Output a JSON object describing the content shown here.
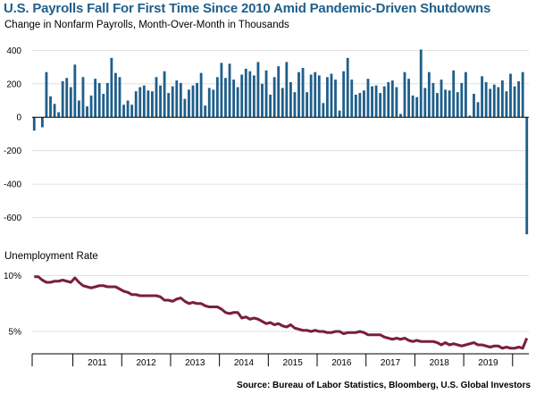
{
  "title": "U.S. Payrolls Fall For First Time Since 2010 Amid Pandemic-Driven Shutdowns",
  "subtitle": "Change in Nonfarm Payrolls, Month-Over-Month in Thousands",
  "source": "Source: Bureau of Labor Statistics, Bloomberg, U.S. Global Investors",
  "colors": {
    "bars": "#1f5f8b",
    "line": "#7a1f3d",
    "title": "#1f5f8b"
  },
  "chart_data": [
    {
      "type": "bar",
      "title": "Change in Nonfarm Payrolls, Month-Over-Month in Thousands",
      "xlabel": "",
      "ylabel": "",
      "ylim": [
        -720,
        450
      ],
      "yticks": [
        400,
        200,
        0,
        -200,
        -400,
        -600
      ],
      "x_ticks": [
        "2011",
        "2012",
        "2013",
        "2014",
        "2015",
        "2016",
        "2017",
        "2018",
        "2019"
      ],
      "x_range": [
        "2010-03",
        "2020-03"
      ],
      "series": [
        {
          "values": [
            -80,
            0,
            -60,
            270,
            125,
            80,
            30,
            215,
            235,
            180,
            315,
            100,
            240,
            65,
            130,
            230,
            205,
            140,
            205,
            355,
            265,
            240,
            75,
            100,
            75,
            155,
            180,
            190,
            160,
            155,
            240,
            190,
            275,
            145,
            185,
            220,
            205,
            110,
            165,
            190,
            205,
            265,
            70,
            175,
            165,
            240,
            325,
            235,
            320,
            225,
            180,
            255,
            290,
            275,
            250,
            330,
            200,
            280,
            135,
            240,
            305,
            175,
            330,
            210,
            150,
            270,
            295,
            150,
            255,
            270,
            250,
            85,
            240,
            260,
            225,
            40,
            275,
            355,
            225,
            135,
            145,
            160,
            230,
            185,
            190,
            145,
            185,
            210,
            220,
            180,
            20,
            270,
            230,
            130,
            120,
            405,
            175,
            270,
            205,
            145,
            225,
            165,
            160,
            280,
            150,
            205,
            270,
            10,
            140,
            90,
            245,
            210,
            170,
            195,
            180,
            220,
            155,
            260,
            185,
            215,
            270,
            -700
          ]
        }
      ]
    },
    {
      "type": "line",
      "title": "Unemployment Rate",
      "xlabel": "",
      "ylabel": "",
      "ylim": [
        3,
        11
      ],
      "yticks": [
        "10%",
        "5%"
      ],
      "ytick_values": [
        10,
        5
      ],
      "series": [
        {
          "values": [
            9.9,
            9.9,
            9.6,
            9.4,
            9.4,
            9.5,
            9.5,
            9.6,
            9.5,
            9.4,
            9.8,
            9.4,
            9.1,
            9.0,
            8.9,
            9.0,
            9.1,
            9.1,
            9.0,
            9.0,
            9.0,
            8.8,
            8.6,
            8.5,
            8.3,
            8.3,
            8.2,
            8.2,
            8.2,
            8.2,
            8.2,
            8.1,
            7.8,
            7.8,
            7.7,
            7.9,
            8.0,
            7.7,
            7.5,
            7.6,
            7.5,
            7.5,
            7.3,
            7.2,
            7.2,
            7.2,
            7.0,
            6.7,
            6.6,
            6.7,
            6.7,
            6.2,
            6.3,
            6.1,
            6.2,
            6.1,
            5.9,
            5.7,
            5.8,
            5.6,
            5.7,
            5.5,
            5.4,
            5.6,
            5.3,
            5.2,
            5.1,
            5.1,
            5.0,
            5.1,
            5.0,
            5.0,
            4.9,
            4.9,
            5.0,
            5.0,
            4.8,
            4.9,
            4.9,
            4.9,
            5.0,
            4.9,
            4.7,
            4.7,
            4.7,
            4.7,
            4.5,
            4.4,
            4.3,
            4.4,
            4.3,
            4.4,
            4.2,
            4.1,
            4.2,
            4.1,
            4.1,
            4.1,
            4.1,
            4.0,
            3.8,
            4.0,
            3.8,
            3.9,
            3.8,
            3.7,
            3.8,
            3.9,
            4.0,
            3.8,
            3.8,
            3.7,
            3.6,
            3.7,
            3.7,
            3.5,
            3.6,
            3.5,
            3.5,
            3.6,
            3.5,
            4.4
          ]
        }
      ]
    }
  ]
}
